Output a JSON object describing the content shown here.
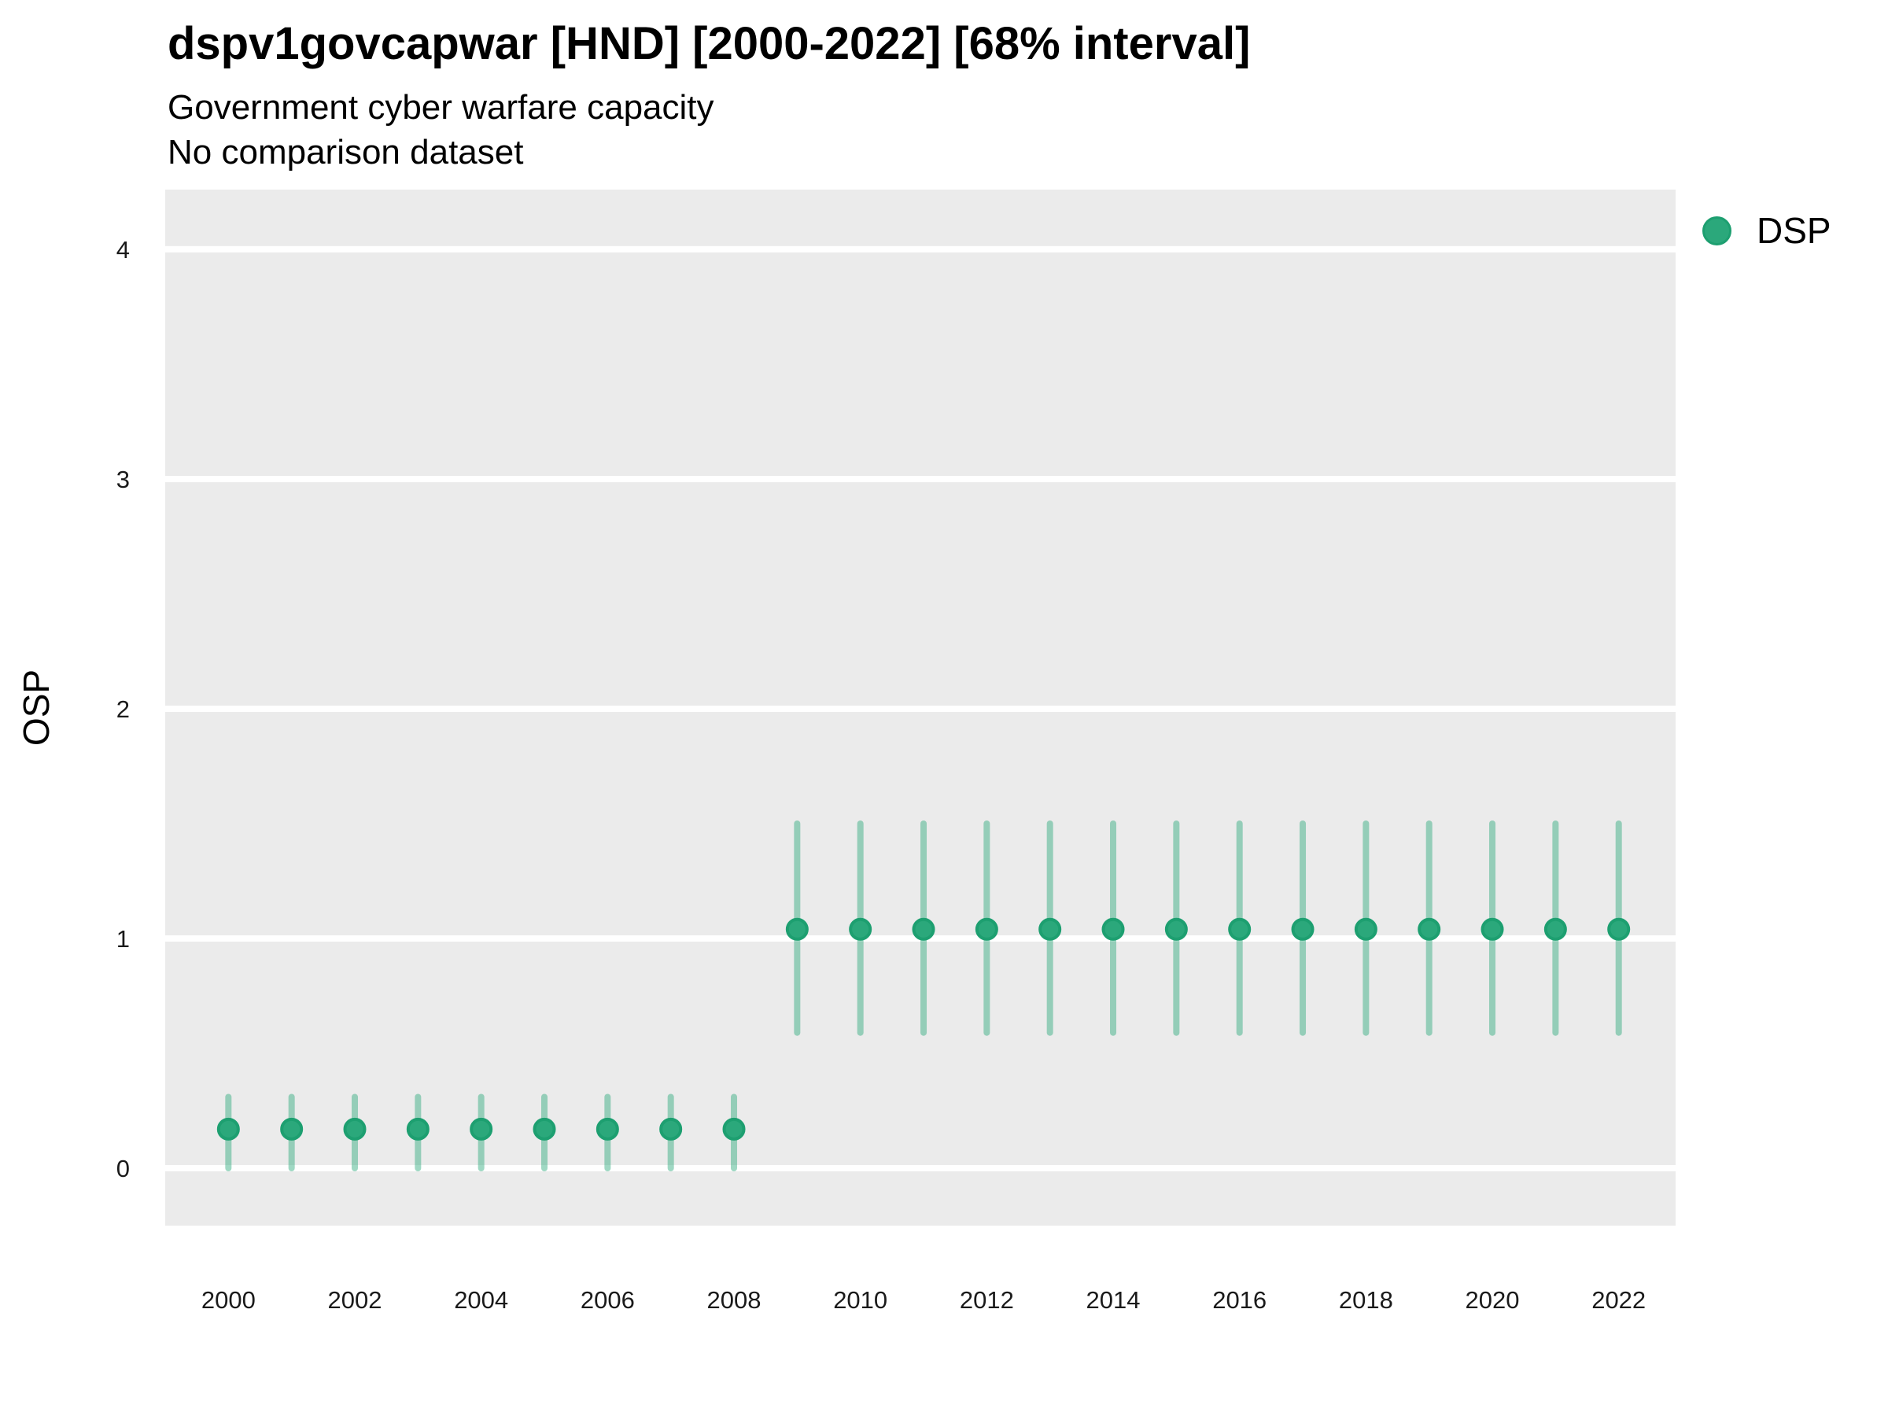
{
  "header": {
    "title": "dspv1govcapwar [HND] [2000-2022] [68% interval]",
    "subtitle": "Government cyber warfare capacity",
    "note": "No comparison dataset"
  },
  "chart_data": {
    "type": "scatter",
    "variant": "pointrange",
    "title": "dspv1govcapwar [HND] [2000-2022] [68% interval]",
    "subtitle": "Government cyber warfare capacity",
    "note": "No comparison dataset",
    "xlabel": "",
    "ylabel": "OSP",
    "xlim": [
      1999.0,
      2022.9
    ],
    "ylim": [
      -0.25,
      4.26
    ],
    "x_ticks": [
      2000,
      2002,
      2004,
      2006,
      2008,
      2010,
      2012,
      2014,
      2016,
      2018,
      2020,
      2022
    ],
    "y_ticks": [
      0,
      1,
      2,
      3,
      4
    ],
    "grid": "horizontal major gridlines only, white on gray panel",
    "legend_position": "right",
    "interval": "68%",
    "colors": {
      "panel_background": "#ebebeb",
      "gridline": "#ffffff",
      "point_fill": "#2ba87b",
      "point_stroke": "#1d9f70",
      "errorbar": "rgba(43,168,123,0.45)",
      "tick_text": "#1a1a1a",
      "title_text": "#000000"
    },
    "series": [
      {
        "name": "DSP",
        "x": [
          2000,
          2001,
          2002,
          2003,
          2004,
          2005,
          2006,
          2007,
          2008,
          2009,
          2010,
          2011,
          2012,
          2013,
          2014,
          2015,
          2016,
          2017,
          2018,
          2019,
          2020,
          2021,
          2022
        ],
        "estimate": [
          0.17,
          0.17,
          0.17,
          0.17,
          0.17,
          0.17,
          0.17,
          0.17,
          0.17,
          1.04,
          1.04,
          1.04,
          1.04,
          1.04,
          1.04,
          1.04,
          1.04,
          1.04,
          1.04,
          1.04,
          1.04,
          1.04,
          1.04
        ],
        "lower": [
          0.0,
          0.0,
          0.0,
          0.0,
          0.0,
          0.0,
          0.0,
          0.0,
          0.0,
          0.59,
          0.59,
          0.59,
          0.59,
          0.59,
          0.59,
          0.59,
          0.59,
          0.59,
          0.59,
          0.59,
          0.59,
          0.59,
          0.59
        ],
        "upper": [
          0.31,
          0.31,
          0.31,
          0.31,
          0.31,
          0.31,
          0.31,
          0.31,
          0.31,
          1.5,
          1.5,
          1.5,
          1.5,
          1.5,
          1.5,
          1.5,
          1.5,
          1.5,
          1.5,
          1.5,
          1.5,
          1.5,
          1.5
        ]
      }
    ]
  }
}
